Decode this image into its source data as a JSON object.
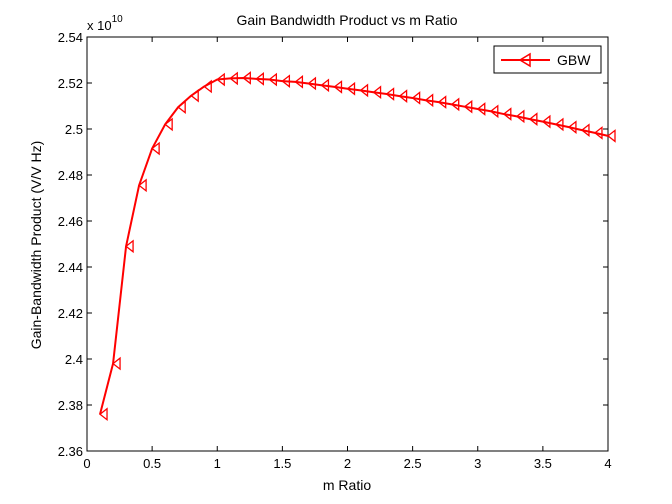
{
  "chart_data": {
    "type": "line",
    "title": "Gain Bandwidth Product vs m Ratio",
    "xlabel": "m Ratio",
    "ylabel": "Gain-Bandwidth Product (V/V Hz)",
    "y_multiplier_base": "x 10",
    "y_multiplier_exponent": "10",
    "xlim": [
      0,
      4
    ],
    "ylim": [
      2.36,
      2.54
    ],
    "xticks": [
      0,
      0.5,
      1,
      1.5,
      2,
      2.5,
      3,
      3.5,
      4
    ],
    "xtick_labels": [
      "0",
      "0.5",
      "1",
      "1.5",
      "2",
      "2.5",
      "3",
      "3.5",
      "4"
    ],
    "yticks": [
      2.36,
      2.38,
      2.4,
      2.42,
      2.44,
      2.46,
      2.48,
      2.5,
      2.52,
      2.54
    ],
    "ytick_labels": [
      "2.36",
      "2.38",
      "2.4",
      "2.42",
      "2.44",
      "2.46",
      "2.48",
      "2.5",
      "2.52",
      "2.54"
    ],
    "grid": false,
    "legend_position": "top-right",
    "series": [
      {
        "name": "GBW",
        "color": "#ff0000",
        "marker": "triangle-left",
        "x": [
          0.1,
          0.2,
          0.3,
          0.4,
          0.5,
          0.6,
          0.7,
          0.8,
          0.9,
          1.0,
          1.1,
          1.2,
          1.3,
          1.4,
          1.5,
          1.6,
          1.7,
          1.8,
          1.9,
          2.0,
          2.1,
          2.2,
          2.3,
          2.4,
          2.5,
          2.6,
          2.7,
          2.8,
          2.9,
          3.0,
          3.1,
          3.2,
          3.3,
          3.4,
          3.5,
          3.6,
          3.7,
          3.8,
          3.9,
          4.0
        ],
        "y": [
          2.376,
          2.398,
          2.449,
          2.4755,
          2.4915,
          2.502,
          2.5095,
          2.5145,
          2.5185,
          2.5215,
          2.522,
          2.5222,
          2.5218,
          2.5215,
          2.5208,
          2.5205,
          2.5198,
          2.519,
          2.5183,
          2.5175,
          2.5168,
          2.516,
          2.5152,
          2.5143,
          2.5135,
          2.5125,
          2.5117,
          2.5107,
          2.5097,
          2.5087,
          2.5077,
          2.5065,
          2.5055,
          2.5043,
          2.5032,
          2.502,
          2.5008,
          2.4995,
          2.4983,
          2.497
        ]
      }
    ]
  }
}
